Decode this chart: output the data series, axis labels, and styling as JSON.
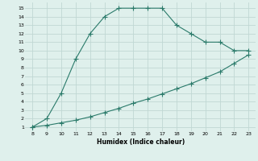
{
  "xlabel": "Humidex (Indice chaleur)",
  "line1_x": [
    8,
    9,
    10,
    11,
    12,
    13,
    14,
    15,
    16,
    17,
    18,
    19,
    20,
    21,
    22,
    23
  ],
  "line1_y": [
    1,
    2,
    5,
    9,
    12,
    14,
    15,
    15,
    15,
    15,
    13,
    12,
    11,
    11,
    10,
    10
  ],
  "line2_x": [
    8,
    9,
    10,
    11,
    12,
    13,
    14,
    15,
    16,
    17,
    18,
    19,
    20,
    21,
    22,
    23
  ],
  "line2_y": [
    1,
    1.2,
    1.5,
    1.8,
    2.2,
    2.7,
    3.2,
    3.8,
    4.3,
    4.9,
    5.5,
    6.1,
    6.8,
    7.5,
    8.5,
    9.5
  ],
  "color": "#2a7a6a",
  "bg_color": "#dff0ec",
  "grid_color": "#c0d8d4",
  "xlim": [
    7.5,
    23.5
  ],
  "ylim": [
    0.5,
    15.7
  ],
  "xticks": [
    8,
    9,
    10,
    11,
    12,
    13,
    14,
    15,
    16,
    17,
    18,
    19,
    20,
    21,
    22,
    23
  ],
  "yticks": [
    1,
    2,
    3,
    4,
    5,
    6,
    7,
    8,
    9,
    10,
    11,
    12,
    13,
    14,
    15
  ]
}
